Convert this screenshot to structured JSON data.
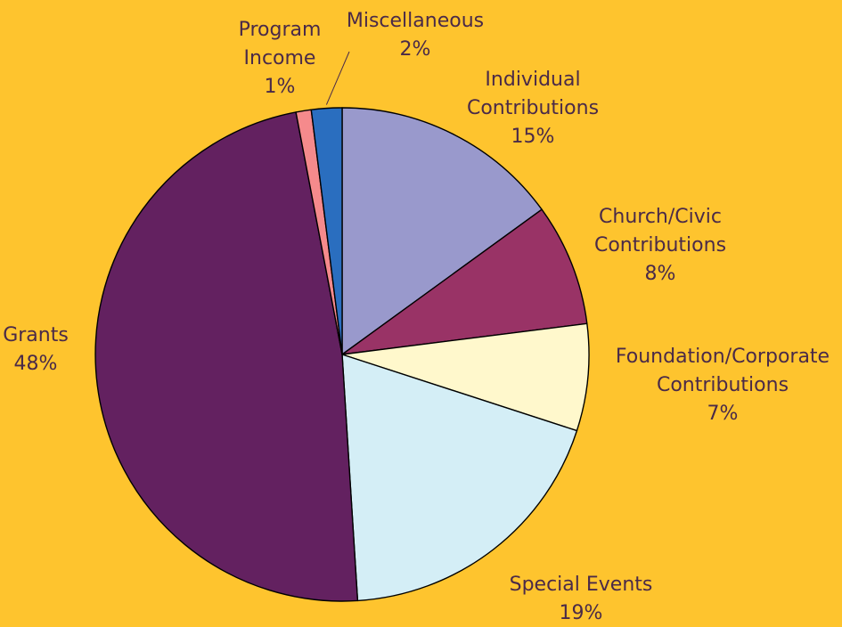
{
  "chart_data": {
    "type": "pie",
    "start_angle_deg": 0,
    "direction": "clockwise",
    "slices": [
      {
        "label": [
          "Individual",
          "Contributions"
        ],
        "value": 15,
        "value_label": "15%",
        "color": "#9999cc"
      },
      {
        "label": [
          "Church/Civic",
          "Contributions"
        ],
        "value": 8,
        "value_label": "8%",
        "color": "#993366"
      },
      {
        "label": [
          "Foundation/Corporate",
          "Contributions"
        ],
        "value": 7,
        "value_label": "7%",
        "color": "#fff8cc"
      },
      {
        "label": [
          "Special Events"
        ],
        "value": 19,
        "value_label": "19%",
        "color": "#d4eef6"
      },
      {
        "label": [
          "Grants"
        ],
        "value": 48,
        "value_label": "48%",
        "color": "#632160"
      },
      {
        "label": [
          "Program",
          "Income"
        ],
        "value": 1,
        "value_label": "1%",
        "color": "#f58a8c"
      },
      {
        "label": [
          "Miscellaneous"
        ],
        "value": 2,
        "value_label": "2%",
        "color": "#2a6ebf"
      }
    ],
    "background": "#fec42e",
    "label_color": "#4a2a48",
    "legend": "none"
  }
}
